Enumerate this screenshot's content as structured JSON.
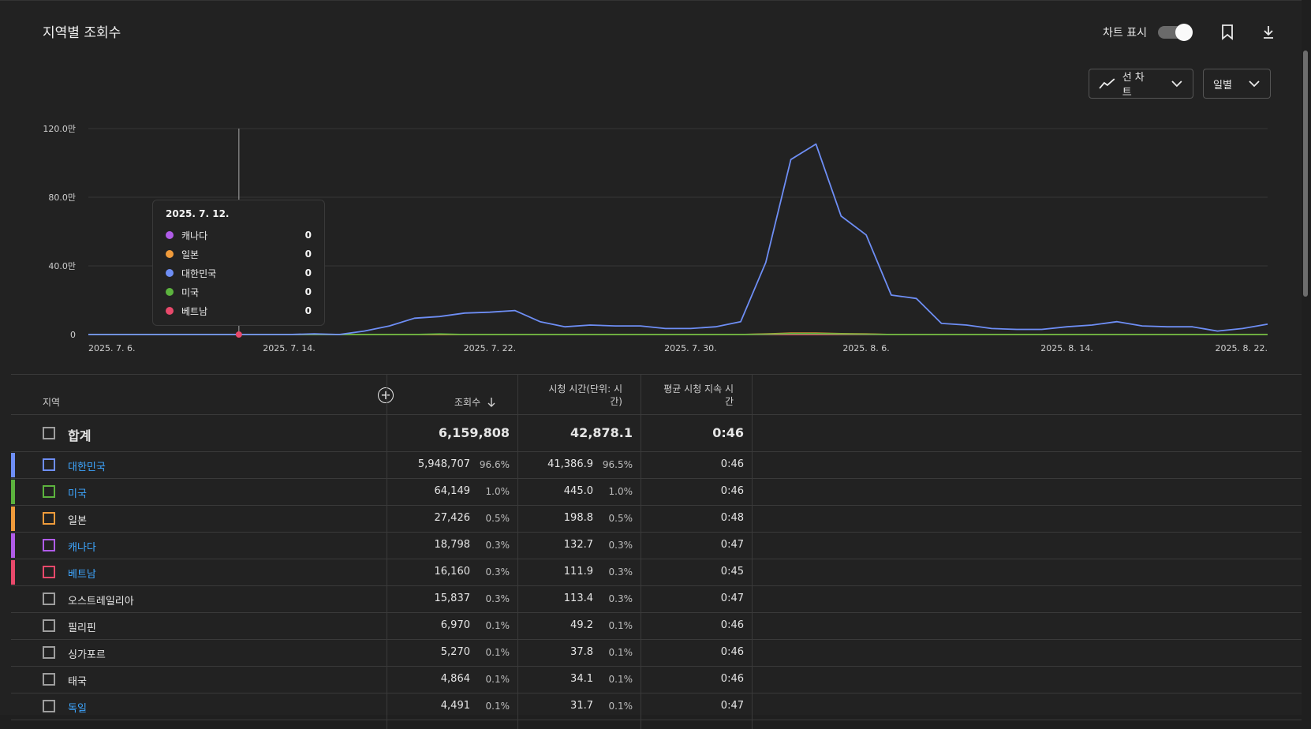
{
  "title": "지역별 조회수",
  "toggle_label": "차트 표시",
  "chart_type_label": "선 차트",
  "interval_label": "일별",
  "chart_data": {
    "type": "line",
    "ylim": [
      0,
      1200000
    ],
    "y_ticks": [
      "0",
      "40.0만",
      "80.0만",
      "120.0만"
    ],
    "x_tick_labels": [
      "2025. 7. 6.",
      "2025. 7. 14.",
      "2025. 7. 22.",
      "2025. 7. 30.",
      "2025. 8. 6.",
      "2025. 8. 14.",
      "2025. 8. 22."
    ],
    "x_tick_index": [
      0,
      8,
      16,
      24,
      31,
      39,
      47
    ],
    "series": [
      {
        "name": "대한민국",
        "color": "#6e8ef5",
        "values": [
          0,
          0,
          0,
          0,
          0,
          0,
          0,
          0,
          0,
          4000,
          0,
          20000,
          50000,
          95000,
          105000,
          125000,
          130000,
          140000,
          75000,
          45000,
          55000,
          50000,
          50000,
          35000,
          35000,
          45000,
          75000,
          420000,
          1020000,
          1110000,
          690000,
          580000,
          230000,
          210000,
          65000,
          55000,
          35000,
          30000,
          30000,
          45000,
          55000,
          75000,
          50000,
          45000,
          45000,
          20000,
          35000,
          60000
        ]
      },
      {
        "name": "미국",
        "color": "#5cb33e",
        "values": [
          0,
          0,
          0,
          0,
          0,
          0,
          0,
          0,
          0,
          0,
          0,
          0,
          0,
          0,
          3000,
          0,
          0,
          0,
          0,
          0,
          0,
          0,
          0,
          0,
          0,
          0,
          0,
          2000,
          5000,
          5000,
          3000,
          2000,
          0,
          0,
          0,
          0,
          0,
          0,
          0,
          0,
          0,
          0,
          0,
          0,
          0,
          0,
          0,
          0
        ]
      },
      {
        "name": "일본",
        "color": "#f09b3b",
        "values": [
          0,
          0,
          0,
          0,
          0,
          0,
          0,
          0,
          0,
          0,
          0,
          0,
          0,
          0,
          0,
          0,
          0,
          0,
          0,
          0,
          0,
          0,
          0,
          0,
          0,
          0,
          0,
          3000,
          8000,
          8000,
          5000,
          3000,
          0,
          0,
          0,
          0,
          0,
          0,
          0,
          0,
          0,
          0,
          0,
          0,
          0,
          0,
          0,
          0
        ]
      },
      {
        "name": "베트남",
        "color": "#e8496b",
        "values": [
          0,
          0,
          0,
          0,
          0,
          0,
          0,
          0,
          0,
          0,
          0,
          0,
          0,
          0,
          0,
          0,
          0,
          0,
          0,
          0,
          0,
          0,
          0,
          0,
          0,
          0,
          0,
          0,
          0,
          0,
          0,
          0,
          0,
          0,
          0,
          0,
          0,
          0,
          0,
          0,
          0,
          0,
          0,
          0,
          0,
          0,
          0,
          0
        ]
      },
      {
        "name": "캐나다",
        "color": "#b05ce8",
        "values": [
          0,
          0,
          0,
          0,
          0,
          0,
          0,
          0,
          0,
          0,
          0,
          0,
          0,
          0,
          0,
          0,
          0,
          0,
          0,
          0,
          0,
          0,
          0,
          0,
          0,
          0,
          0,
          0,
          0,
          0,
          0,
          0,
          0,
          0,
          0,
          0,
          0,
          0,
          0,
          0,
          0,
          0,
          0,
          0,
          0,
          0,
          0,
          0
        ]
      }
    ],
    "hover_index": 6
  },
  "tooltip": {
    "date": "2025. 7. 12.",
    "rows": [
      {
        "name": "캐나다",
        "value": "0",
        "color": "#b05ce8"
      },
      {
        "name": "일본",
        "value": "0",
        "color": "#f09b3b"
      },
      {
        "name": "대한민국",
        "value": "0",
        "color": "#6e8ef5"
      },
      {
        "name": "미국",
        "value": "0",
        "color": "#5cb33e"
      },
      {
        "name": "베트남",
        "value": "0",
        "color": "#e8496b"
      }
    ]
  },
  "table": {
    "headers": {
      "region": "지역",
      "views": "조회수",
      "watch_time_1": "시청 시간(단위: 시",
      "watch_time_2": "간)",
      "avg_1": "평균 시청 지속 시",
      "avg_2": "간"
    },
    "total": {
      "name": "합계",
      "views": "6,159,808",
      "watch": "42,878.1",
      "avg": "0:46"
    },
    "rows": [
      {
        "name": "대한민국",
        "views": "5,948,707",
        "views_pct": "96.6%",
        "watch": "41,386.9",
        "watch_pct": "96.5%",
        "avg": "0:46",
        "color": "#6e8ef5",
        "link": true
      },
      {
        "name": "미국",
        "views": "64,149",
        "views_pct": "1.0%",
        "watch": "445.0",
        "watch_pct": "1.0%",
        "avg": "0:46",
        "color": "#5cb33e",
        "link": true
      },
      {
        "name": "일본",
        "views": "27,426",
        "views_pct": "0.5%",
        "watch": "198.8",
        "watch_pct": "0.5%",
        "avg": "0:48",
        "color": "#f09b3b",
        "link": false
      },
      {
        "name": "캐나다",
        "views": "18,798",
        "views_pct": "0.3%",
        "watch": "132.7",
        "watch_pct": "0.3%",
        "avg": "0:47",
        "color": "#b05ce8",
        "link": true
      },
      {
        "name": "베트남",
        "views": "16,160",
        "views_pct": "0.3%",
        "watch": "111.9",
        "watch_pct": "0.3%",
        "avg": "0:45",
        "color": "#e8496b",
        "link": true
      },
      {
        "name": "오스트레일리아",
        "views": "15,837",
        "views_pct": "0.3%",
        "watch": "113.4",
        "watch_pct": "0.3%",
        "avg": "0:47",
        "color": "",
        "link": false
      },
      {
        "name": "필리핀",
        "views": "6,970",
        "views_pct": "0.1%",
        "watch": "49.2",
        "watch_pct": "0.1%",
        "avg": "0:46",
        "color": "",
        "link": false
      },
      {
        "name": "싱가포르",
        "views": "5,270",
        "views_pct": "0.1%",
        "watch": "37.8",
        "watch_pct": "0.1%",
        "avg": "0:46",
        "color": "",
        "link": false
      },
      {
        "name": "태국",
        "views": "4,864",
        "views_pct": "0.1%",
        "watch": "34.1",
        "watch_pct": "0.1%",
        "avg": "0:46",
        "color": "",
        "link": false
      },
      {
        "name": "독일",
        "views": "4,491",
        "views_pct": "0.1%",
        "watch": "31.7",
        "watch_pct": "0.1%",
        "avg": "0:47",
        "color": "",
        "link": true
      }
    ]
  }
}
